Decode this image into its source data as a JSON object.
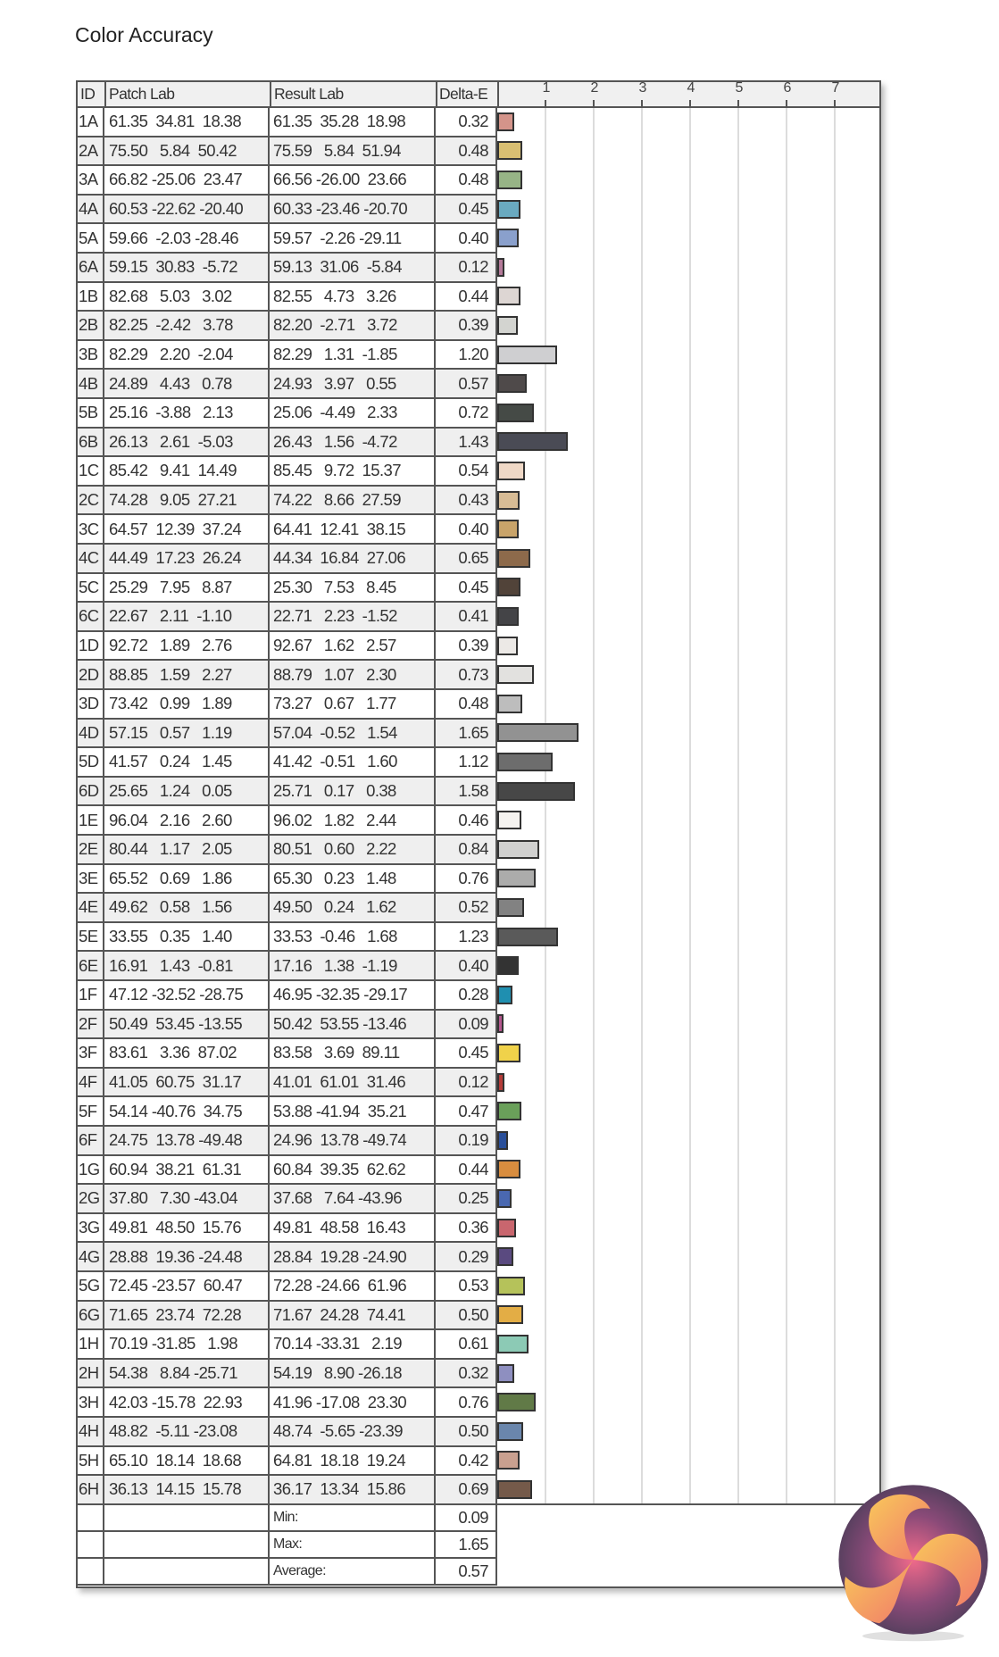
{
  "title": "Color Accuracy",
  "chart_data": {
    "type": "bar",
    "orientation": "horizontal",
    "title": "Color Accuracy",
    "columns": [
      "ID",
      "Patch Lab",
      "Result Lab",
      "Delta-E"
    ],
    "xlim": [
      0,
      7.8
    ],
    "x_ticks": [
      "1",
      "2",
      "3",
      "4",
      "5",
      "6",
      "7"
    ],
    "grid": true,
    "rows": [
      {
        "id": "1A",
        "patch": "61.35  34.81  18.38",
        "result": "61.35  35.28  18.98",
        "de": "0.32",
        "color": "#d4948a"
      },
      {
        "id": "2A",
        "patch": "75.50   5.84  50.42",
        "result": "75.59   5.84  51.94",
        "de": "0.48",
        "color": "#d9bf72"
      },
      {
        "id": "3A",
        "patch": "66.82 -25.06  23.47",
        "result": "66.56 -26.00  23.66",
        "de": "0.48",
        "color": "#97b486"
      },
      {
        "id": "4A",
        "patch": "60.53 -22.62 -20.40",
        "result": "60.33 -23.46 -20.70",
        "de": "0.45",
        "color": "#6aaac0"
      },
      {
        "id": "5A",
        "patch": "59.66  -2.03 -28.46",
        "result": "59.57  -2.26 -29.11",
        "de": "0.40",
        "color": "#8aa0cc"
      },
      {
        "id": "6A",
        "patch": "59.15  30.83  -5.72",
        "result": "59.13  31.06  -5.84",
        "de": "0.12",
        "color": "#b57a9a"
      },
      {
        "id": "1B",
        "patch": "82.68   5.03   3.02",
        "result": "82.55   4.73   3.26",
        "de": "0.44",
        "color": "#ddd6d3"
      },
      {
        "id": "2B",
        "patch": "82.25  -2.42   3.78",
        "result": "82.20  -2.71   3.72",
        "de": "0.39",
        "color": "#d3d4d0"
      },
      {
        "id": "3B",
        "patch": "82.29   2.20  -2.04",
        "result": "82.29   1.31  -1.85",
        "de": "1.20",
        "color": "#cfcfd1"
      },
      {
        "id": "4B",
        "patch": "24.89   4.43   0.78",
        "result": "24.93   3.97   0.55",
        "de": "0.57",
        "color": "#4f4a4a"
      },
      {
        "id": "5B",
        "patch": "25.16  -3.88   2.13",
        "result": "25.06  -4.49   2.33",
        "de": "0.72",
        "color": "#454a46"
      },
      {
        "id": "6B",
        "patch": "26.13   2.61  -5.03",
        "result": "26.43   1.56  -4.72",
        "de": "1.43",
        "color": "#4a4b55"
      },
      {
        "id": "1C",
        "patch": "85.42   9.41  14.49",
        "result": "85.45   9.72  15.37",
        "de": "0.54",
        "color": "#efd8c6"
      },
      {
        "id": "2C",
        "patch": "74.28   9.05  27.21",
        "result": "74.22   8.66  27.59",
        "de": "0.43",
        "color": "#d8bc95"
      },
      {
        "id": "3C",
        "patch": "64.57  12.39  37.24",
        "result": "64.41  12.41  38.15",
        "de": "0.40",
        "color": "#c9a46a"
      },
      {
        "id": "4C",
        "patch": "44.49  17.23  26.24",
        "result": "44.34  16.84  27.06",
        "de": "0.65",
        "color": "#8d6a4b"
      },
      {
        "id": "5C",
        "patch": "25.29   7.95   8.87",
        "result": "25.30   7.53   8.45",
        "de": "0.45",
        "color": "#514339"
      },
      {
        "id": "6C",
        "patch": "22.67   2.11  -1.10",
        "result": "22.71   2.23  -1.52",
        "de": "0.41",
        "color": "#444447"
      },
      {
        "id": "1D",
        "patch": "92.72   1.89   2.76",
        "result": "92.67   1.62   2.57",
        "de": "0.39",
        "color": "#ece9e6"
      },
      {
        "id": "2D",
        "patch": "88.85   1.59   2.27",
        "result": "88.79   1.07   2.30",
        "de": "0.73",
        "color": "#e2e1df"
      },
      {
        "id": "3D",
        "patch": "73.42   0.99   1.89",
        "result": "73.27   0.67   1.77",
        "de": "0.48",
        "color": "#bdbdbd"
      },
      {
        "id": "4D",
        "patch": "57.15   0.57   1.19",
        "result": "57.04  -0.52   1.54",
        "de": "1.65",
        "color": "#929292"
      },
      {
        "id": "5D",
        "patch": "41.57   0.24   1.45",
        "result": "41.42  -0.51   1.60",
        "de": "1.12",
        "color": "#6d6d6d"
      },
      {
        "id": "6D",
        "patch": "25.65   1.24   0.05",
        "result": "25.71   0.17   0.38",
        "de": "1.58",
        "color": "#474747"
      },
      {
        "id": "1E",
        "patch": "96.04   2.16   2.60",
        "result": "96.02   1.82   2.44",
        "de": "0.46",
        "color": "#f5f3f0"
      },
      {
        "id": "2E",
        "patch": "80.44   1.17   2.05",
        "result": "80.51   0.60   2.22",
        "de": "0.84",
        "color": "#d0d0cf"
      },
      {
        "id": "3E",
        "patch": "65.52   0.69   1.86",
        "result": "65.30   0.23   1.48",
        "de": "0.76",
        "color": "#acacab"
      },
      {
        "id": "4E",
        "patch": "49.62   0.58   1.56",
        "result": "49.50   0.24   1.62",
        "de": "0.52",
        "color": "#828282"
      },
      {
        "id": "5E",
        "patch": "33.55   0.35   1.40",
        "result": "33.53  -0.46   1.68",
        "de": "1.23",
        "color": "#5a5a5a"
      },
      {
        "id": "6E",
        "patch": "16.91   1.43  -0.81",
        "result": "17.16   1.38  -1.19",
        "de": "0.40",
        "color": "#333333"
      },
      {
        "id": "1F",
        "patch": "47.12 -32.52 -28.75",
        "result": "46.95 -32.35 -29.17",
        "de": "0.28",
        "color": "#1f8fb0"
      },
      {
        "id": "2F",
        "patch": "50.49  53.45 -13.55",
        "result": "50.42  53.55 -13.46",
        "de": "0.09",
        "color": "#b5578f"
      },
      {
        "id": "3F",
        "patch": "83.61   3.36  87.02",
        "result": "83.58   3.69  89.11",
        "de": "0.45",
        "color": "#f0d24a"
      },
      {
        "id": "4F",
        "patch": "41.05  60.75  31.17",
        "result": "41.01  61.01  31.46",
        "de": "0.12",
        "color": "#b53b38"
      },
      {
        "id": "5F",
        "patch": "54.14 -40.76  34.75",
        "result": "53.88 -41.94  35.21",
        "de": "0.47",
        "color": "#6aa05a"
      },
      {
        "id": "6F",
        "patch": "24.75  13.78 -49.48",
        "result": "24.96  13.78 -49.74",
        "de": "0.19",
        "color": "#2a4f9a"
      },
      {
        "id": "1G",
        "patch": "60.94  38.21  61.31",
        "result": "60.84  39.35  62.62",
        "de": "0.44",
        "color": "#d88d3f"
      },
      {
        "id": "2G",
        "patch": "37.80   7.30 -43.04",
        "result": "37.68   7.64 -43.96",
        "de": "0.25",
        "color": "#4a68b0"
      },
      {
        "id": "3G",
        "patch": "49.81  48.50  15.76",
        "result": "49.81  48.58  16.43",
        "de": "0.36",
        "color": "#c9666e"
      },
      {
        "id": "4G",
        "patch": "28.88  19.36 -24.48",
        "result": "28.84  19.28 -24.90",
        "de": "0.29",
        "color": "#5a4a80"
      },
      {
        "id": "5G",
        "patch": "72.45 -23.57  60.47",
        "result": "72.28 -24.66  61.96",
        "de": "0.53",
        "color": "#b5c25a"
      },
      {
        "id": "6G",
        "patch": "71.65  23.74  72.28",
        "result": "71.67  24.28  74.41",
        "de": "0.50",
        "color": "#e3ad45"
      },
      {
        "id": "1H",
        "patch": "70.19 -31.85   1.98",
        "result": "70.14 -33.31   2.19",
        "de": "0.61",
        "color": "#8ccab5"
      },
      {
        "id": "2H",
        "patch": "54.38   8.84 -25.71",
        "result": "54.19   8.90 -26.18",
        "de": "0.32",
        "color": "#8e8fc0"
      },
      {
        "id": "3H",
        "patch": "42.03 -15.78  22.93",
        "result": "41.96 -17.08  23.30",
        "de": "0.76",
        "color": "#617a47"
      },
      {
        "id": "4H",
        "patch": "48.82  -5.11 -23.08",
        "result": "48.74  -5.65 -23.39",
        "de": "0.50",
        "color": "#6a86ac"
      },
      {
        "id": "5H",
        "patch": "65.10  18.14  18.68",
        "result": "64.81  18.18  19.24",
        "de": "0.42",
        "color": "#c9a08f"
      },
      {
        "id": "6H",
        "patch": "36.13  14.15  15.78",
        "result": "36.17  13.34  15.86",
        "de": "0.69",
        "color": "#755a4a"
      }
    ],
    "summary": [
      {
        "label": "Min:",
        "value": "0.09"
      },
      {
        "label": "Max:",
        "value": "1.65"
      },
      {
        "label": "Average:",
        "value": "0.57"
      }
    ]
  },
  "logo": {
    "name": "swirl-logo",
    "colors": [
      "#f7c05a",
      "#f08a6a",
      "#e0507a",
      "#6a4a70"
    ]
  }
}
